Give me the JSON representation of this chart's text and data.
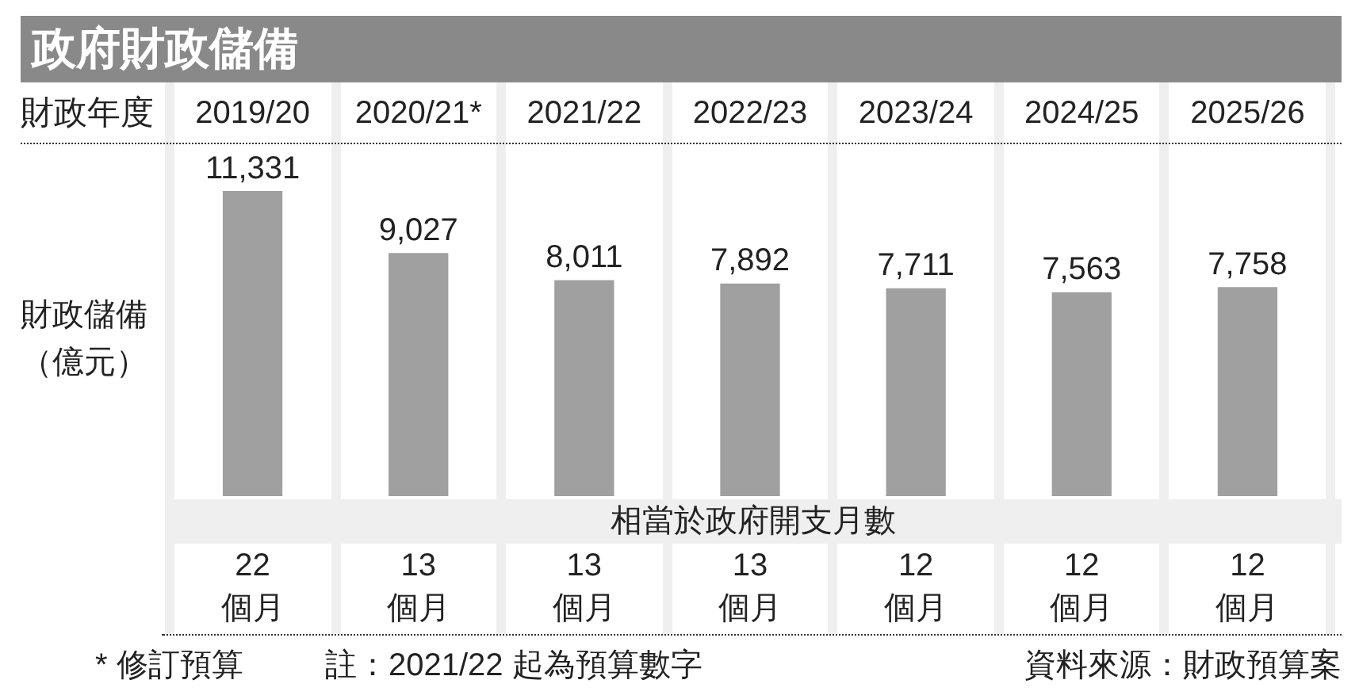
{
  "chart_data": {
    "type": "bar",
    "title": "政府財政儲備",
    "xlabel": "財政年度",
    "ylabel": "財政儲備（億元）",
    "categories": [
      "2019/20",
      "2020/21*",
      "2021/22",
      "2022/23",
      "2023/24",
      "2024/25",
      "2025/26"
    ],
    "values": [
      11331,
      9027,
      8011,
      7892,
      7711,
      7563,
      7758
    ],
    "value_labels": [
      "11,331",
      "9,027",
      "8,011",
      "7,892",
      "7,711",
      "7,563",
      "7,758"
    ],
    "color": "#a0a0a0",
    "annotations": [
      "相當於政府開支月數",
      "22個月",
      "13個月",
      "13個月",
      "13個月",
      "12個月",
      "12個月",
      "12個月",
      "* 修訂預算",
      "註：2021/22 起為預算數字",
      "資料來源：財政預算案"
    ]
  }
}
